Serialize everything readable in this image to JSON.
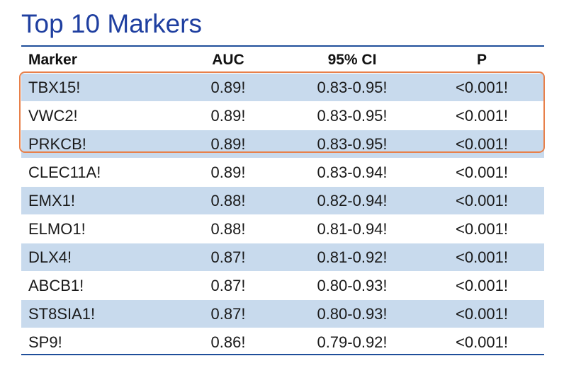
{
  "title": "Top 10 Markers",
  "colors": {
    "title": "#1f3fa0",
    "shade": "#c8daed",
    "rule": "#1f4e9a",
    "highlight": "#e8804a"
  },
  "table": {
    "headers": {
      "marker": "Marker",
      "auc": "AUC",
      "ci": "95% CI",
      "p": "P"
    },
    "rows": [
      {
        "marker": "TBX15!",
        "auc": "0.89!",
        "ci": "0.83-0.95!",
        "p": "<0.001!"
      },
      {
        "marker": "VWC2!",
        "auc": "0.89!",
        "ci": "0.83-0.95!",
        "p": "<0.001!"
      },
      {
        "marker": "PRKCB!",
        "auc": "0.89!",
        "ci": "0.83-0.95!",
        "p": "<0.001!"
      },
      {
        "marker": "CLEC11A!",
        "auc": "0.89!",
        "ci": "0.83-0.94!",
        "p": "<0.001!"
      },
      {
        "marker": "EMX1!",
        "auc": "0.88!",
        "ci": "0.82-0.94!",
        "p": "<0.001!"
      },
      {
        "marker": "ELMO1!",
        "auc": "0.88!",
        "ci": "0.81-0.94!",
        "p": "<0.001!"
      },
      {
        "marker": "DLX4!",
        "auc": "0.87!",
        "ci": "0.81-0.92!",
        "p": "<0.001!"
      },
      {
        "marker": "ABCB1!",
        "auc": "0.87!",
        "ci": "0.80-0.93!",
        "p": "<0.001!"
      },
      {
        "marker": "ST8SIA1!",
        "auc": "0.87!",
        "ci": "0.80-0.93!",
        "p": "<0.001!"
      },
      {
        "marker": "SP9!",
        "auc": "0.86!",
        "ci": "0.79-0.92!",
        "p": "<0.001!"
      }
    ],
    "highlighted_rows": [
      "TBX15!",
      "VWC2!",
      "PRKCB!"
    ]
  }
}
